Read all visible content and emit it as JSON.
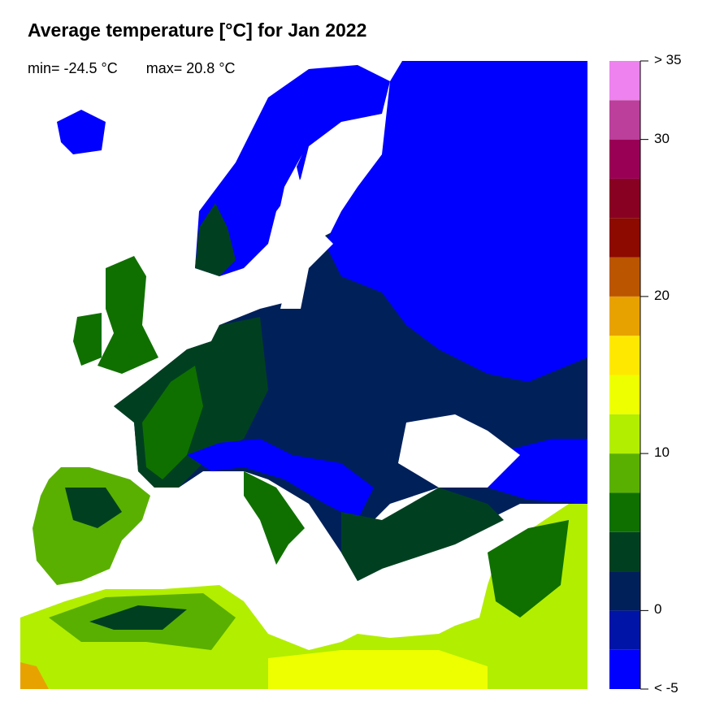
{
  "title": "Average temperature [°C] for Jan 2022",
  "stats": {
    "min": "min= -24.5 °C",
    "max": "max= 20.8 °C"
  },
  "legend": {
    "bins": [
      -5,
      -2.5,
      0,
      2.5,
      5,
      7.5,
      10,
      12.5,
      15,
      17.5,
      20,
      22.5,
      25,
      27.5,
      30,
      32.5,
      35
    ],
    "colors": [
      "#0000FF",
      "#0014A8",
      "#00205A",
      "#004020",
      "#0F7000",
      "#5AB000",
      "#B2EE00",
      "#EEFF00",
      "#FFE800",
      "#E8A200",
      "#BB5500",
      "#8C0A00",
      "#880022",
      "#990055",
      "#BB3F9B",
      "#EE82EE"
    ],
    "tick_labels": [
      {
        "value": 35,
        "label": "> 35"
      },
      {
        "value": 30,
        "label": "30"
      },
      {
        "value": 20,
        "label": "20"
      },
      {
        "value": 10,
        "label": "10"
      },
      {
        "value": 0,
        "label": "0"
      },
      {
        "value": -5,
        "label": "< -5"
      }
    ]
  }
}
